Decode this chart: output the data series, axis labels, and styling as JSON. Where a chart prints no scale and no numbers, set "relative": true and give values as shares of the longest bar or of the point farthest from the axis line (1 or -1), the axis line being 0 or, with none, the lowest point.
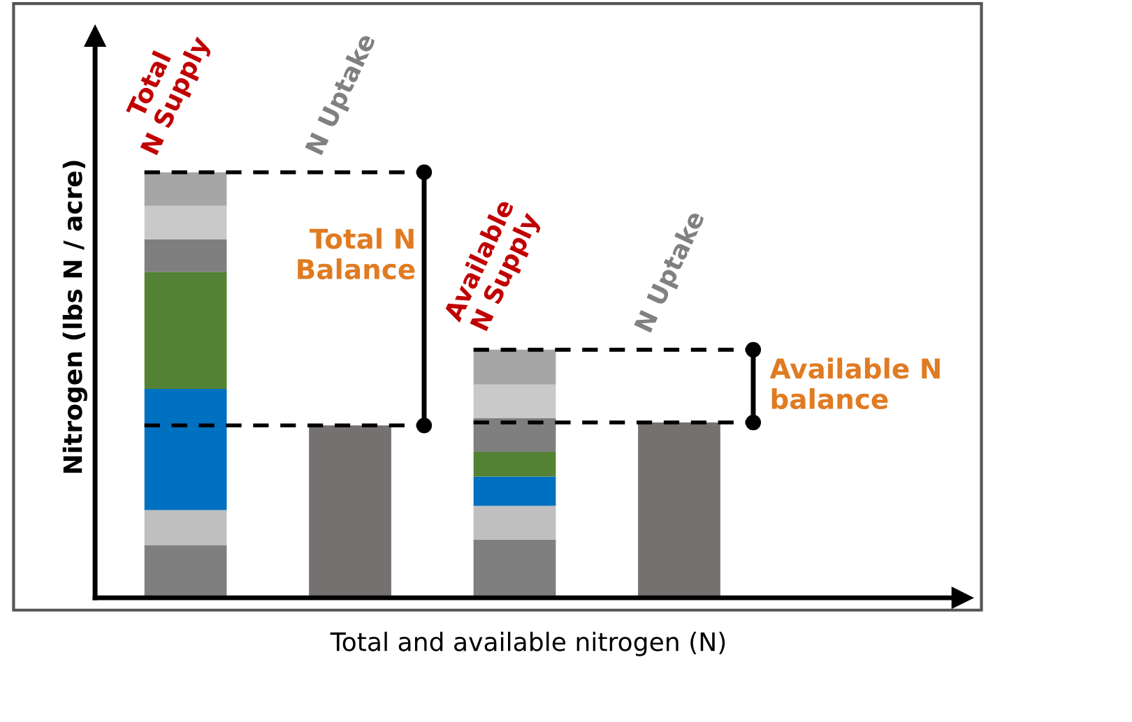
{
  "chart_data": {
    "type": "bar",
    "stacked": true,
    "relative": true,
    "xlabel": "Total and available nitrogen (N)",
    "ylabel": "Nitrogen (lbs N / acre)",
    "categories": [
      null,
      null,
      null,
      null
    ],
    "series": [
      {
        "colors": [
          "#7f7f7f",
          "#767171",
          "#7f7f7f",
          "#767171"
        ],
        "values": [
          0.124,
          0.405,
          0.137,
          0.412
        ]
      },
      {
        "color": "#bfbfbf",
        "values": [
          0.082,
          null,
          0.079,
          null
        ]
      },
      {
        "color": "#0070c0",
        "values": [
          0.285,
          null,
          0.069,
          null
        ]
      },
      {
        "color": "#548235",
        "values": [
          0.275,
          null,
          0.058,
          null
        ]
      },
      {
        "color": "#7f7f7f",
        "values": [
          0.076,
          null,
          0.079,
          null
        ]
      },
      {
        "color": "#c9c9c9",
        "values": [
          0.079,
          null,
          0.079,
          null
        ]
      },
      {
        "color": "#a6a6a6",
        "values": [
          0.079,
          null,
          0.082,
          null
        ]
      }
    ],
    "ref_lines": [
      {
        "axis": "y",
        "value": 1.0,
        "color": "#000000",
        "line_style": "dashed"
      },
      {
        "axis": "y",
        "value": 0.405,
        "color": "#000000",
        "line_style": "dashed"
      },
      {
        "axis": "y",
        "value": 0.583,
        "color": "#000000",
        "line_style": "dashed"
      },
      {
        "axis": "y",
        "value": 0.412,
        "color": "#000000",
        "line_style": "dashed"
      }
    ],
    "annotations": [
      "Total N Supply",
      "N Uptake",
      "Available N Supply",
      "N Uptake",
      "Total N Balance",
      "Available N balance"
    ],
    "grid": false,
    "legend": false
  }
}
